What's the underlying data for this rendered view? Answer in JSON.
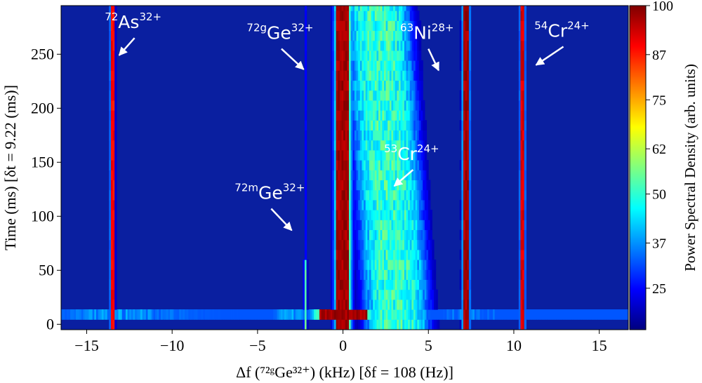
{
  "chart_data": {
    "type": "heatmap",
    "xlabel": "Δf (⁷²ᵍGe³²⁺) (kHz) [δf = 108 (Hz)]",
    "ylabel": "Time (ms) [δt = 9.22 (ms)]",
    "xlim": [
      -16.5,
      16.7
    ],
    "ylim": [
      -5,
      295
    ],
    "x_ticks": [
      -15,
      -10,
      -5,
      0,
      5,
      10,
      15
    ],
    "x_tick_labels": [
      "−15",
      "−10",
      "−5",
      "0",
      "5",
      "10",
      "15"
    ],
    "y_ticks": [
      0,
      50,
      100,
      150,
      200,
      250
    ],
    "y_tick_labels": [
      "0",
      "50",
      "100",
      "150",
      "200",
      "250"
    ],
    "colorbar": {
      "label": "Power Spectral Density (arb. units)",
      "min": 14,
      "max": 100,
      "ticks": [
        25,
        37,
        50,
        62,
        75,
        87,
        100
      ],
      "tick_labels": [
        "25",
        "37",
        "50",
        "62",
        "75",
        "87",
        "100"
      ],
      "colormap": "jet"
    },
    "traces": [
      {
        "ion": "72As32+",
        "freq_khz": -13.5,
        "intensity": 92,
        "width_khz": 0.35
      },
      {
        "ion": "72mGe32+",
        "freq_khz": -2.2,
        "intensity": 55,
        "width_khz": 0.25
      },
      {
        "ion": "72gGe32+",
        "freq_khz": 0.0,
        "intensity": 100,
        "width_khz": 1.3
      },
      {
        "ion": "53Cr24+",
        "freq_khz": 2.5,
        "intensity": 52,
        "width_khz": 3.5
      },
      {
        "ion": "63Ni28+",
        "freq_khz": 7.2,
        "intensity": 100,
        "width_khz": 0.55
      },
      {
        "ion": "54Cr24+",
        "freq_khz": 10.5,
        "intensity": 95,
        "width_khz": 0.4
      }
    ],
    "annotations": [
      {
        "id": "as72",
        "mass": "72",
        "symbol": "As",
        "charge": "32+",
        "arrow_from": [
          -12.2,
          265
        ],
        "arrow_to": [
          -13.1,
          249
        ]
      },
      {
        "id": "ge72g",
        "mass": "72g",
        "symbol": "Ge",
        "charge": "32+",
        "arrow_from": [
          -3.6,
          255
        ],
        "arrow_to": [
          -2.3,
          236
        ]
      },
      {
        "id": "ni63",
        "mass": "63",
        "symbol": "Ni",
        "charge": "28+",
        "arrow_from": [
          5.0,
          255
        ],
        "arrow_to": [
          5.6,
          235
        ]
      },
      {
        "id": "cr54",
        "mass": "54",
        "symbol": "Cr",
        "charge": "24+",
        "arrow_from": [
          12.9,
          257
        ],
        "arrow_to": [
          11.3,
          240
        ]
      },
      {
        "id": "cr53",
        "mass": "53",
        "symbol": "Cr",
        "charge": "24+",
        "arrow_from": [
          4.1,
          143
        ],
        "arrow_to": [
          3.0,
          128
        ]
      },
      {
        "id": "ge72m",
        "mass": "72m",
        "symbol": "Ge",
        "charge": "32+",
        "arrow_from": [
          -4.2,
          107
        ],
        "arrow_to": [
          -3.0,
          87
        ]
      }
    ]
  }
}
